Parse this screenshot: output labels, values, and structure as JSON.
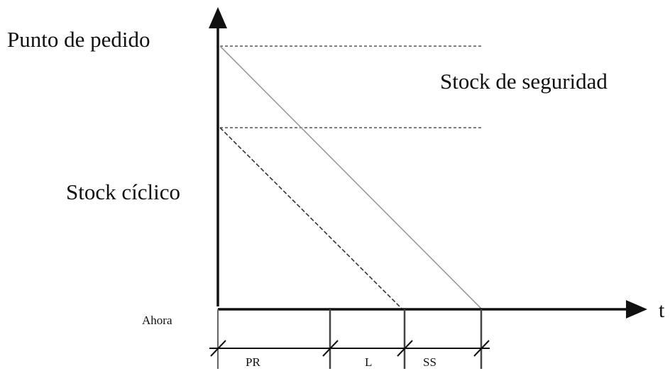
{
  "labels": {
    "reorder_point": "Punto de pedido",
    "safety_stock": "Stock de seguridad",
    "cycle_stock": "Stock cíclico",
    "now": "Ahora",
    "time_axis": "t",
    "segment_pr": "PR",
    "segment_l": "L",
    "segment_ss": "SS"
  },
  "colors": {
    "axis": "#111111",
    "solid_line": "#9a9a9a",
    "dashed_line": "#333333",
    "guide_dash": "#555555"
  }
}
